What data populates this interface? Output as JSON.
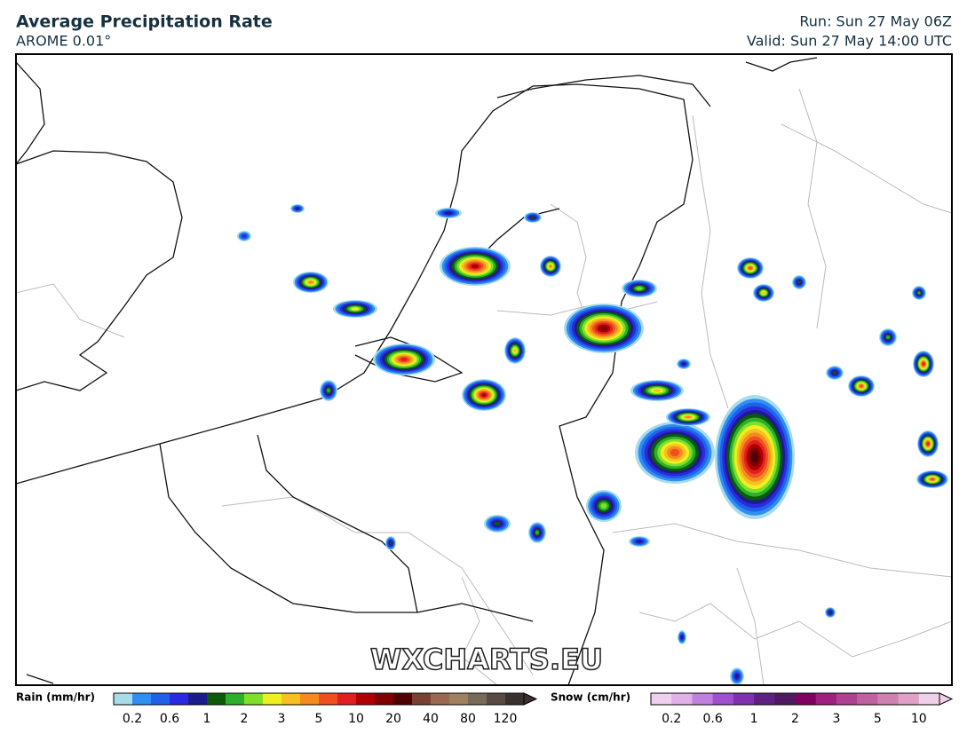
{
  "header": {
    "title": "Average Precipitation Rate",
    "model": "AROME 0.01°",
    "run": "Run: Sun 27 May 06Z",
    "valid": "Valid: Sun 27 May 14:00 UTC"
  },
  "watermark": "WXCHARTS.EU",
  "legend": {
    "rain": {
      "label": "Rain (mm/hr)",
      "colors": [
        "#a8dcea",
        "#2f8ff5",
        "#1f62e8",
        "#2a2ae0",
        "#1c1c8c",
        "#0a5a0a",
        "#2ab02a",
        "#7fe02a",
        "#f0f020",
        "#f5c020",
        "#f58a20",
        "#f05020",
        "#e02020",
        "#b00000",
        "#800000",
        "#500000",
        "#7a4030",
        "#9a6a50",
        "#a08060",
        "#7a6a5a",
        "#5a4a44",
        "#3a3030"
      ],
      "ticks": [
        "0.2",
        "0.6",
        "1",
        "2",
        "3",
        "5",
        "10",
        "20",
        "40",
        "80",
        "120"
      ]
    },
    "snow": {
      "label": "Snow (cm/hr)",
      "colors": [
        "#f0d0f0",
        "#e0b0e8",
        "#c080e0",
        "#a050d0",
        "#8030b0",
        "#602080",
        "#501860",
        "#800060",
        "#a02080",
        "#b04090",
        "#c060a0",
        "#d080b0",
        "#e0a0c8",
        "#f0d0e8"
      ],
      "ticks": [
        "0.2",
        "0.6",
        "1",
        "2",
        "3",
        "5",
        "10"
      ]
    }
  }
}
